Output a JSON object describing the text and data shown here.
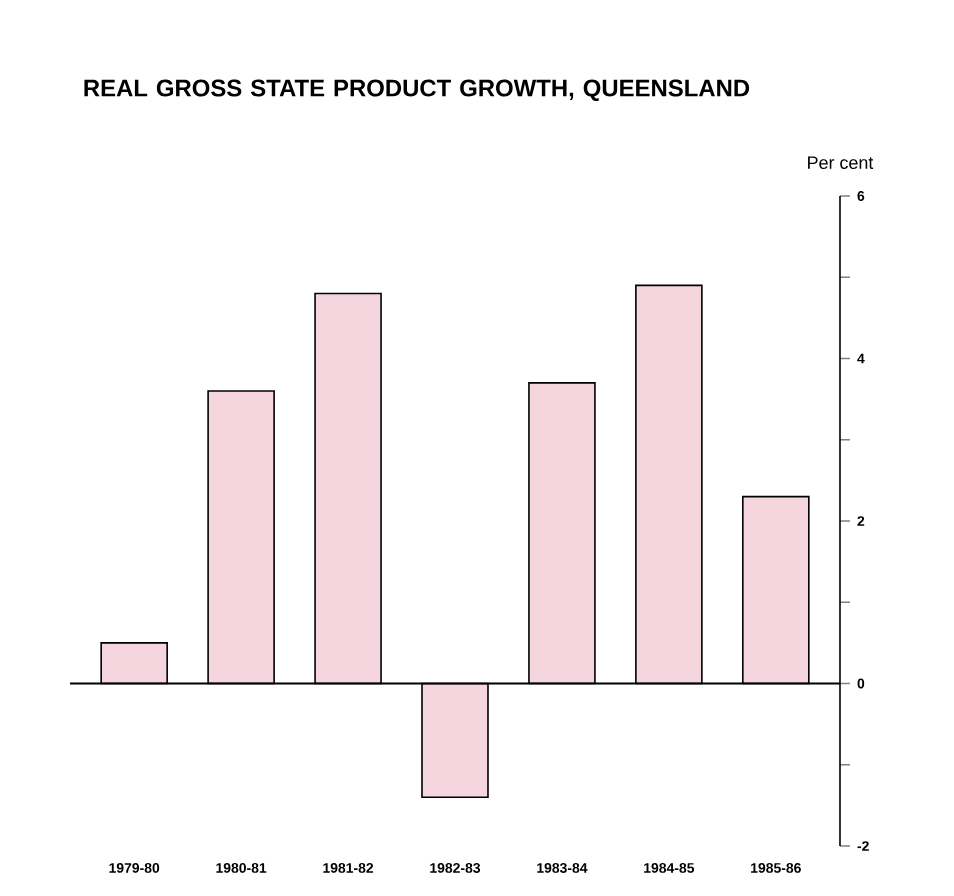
{
  "chart_data": {
    "type": "bar",
    "title": "REAL GROSS STATE PRODUCT GROWTH, QUEENSLAND",
    "ylabel": "Per cent",
    "categories": [
      "1979-80",
      "1980-81",
      "1981-82",
      "1982-83",
      "1983-84",
      "1984-85",
      "1985-86"
    ],
    "values": [
      0.5,
      3.6,
      4.8,
      -1.4,
      3.7,
      4.9,
      2.3
    ],
    "color": "#f5d5de",
    "ylim": [
      -2,
      6
    ],
    "yticks": [
      -2,
      {
        "value": -1,
        "label": null
      },
      0,
      {
        "value": 1,
        "label": null
      },
      2,
      {
        "value": 3,
        "label": null
      },
      4,
      {
        "value": 5,
        "label": null
      },
      6
    ]
  }
}
